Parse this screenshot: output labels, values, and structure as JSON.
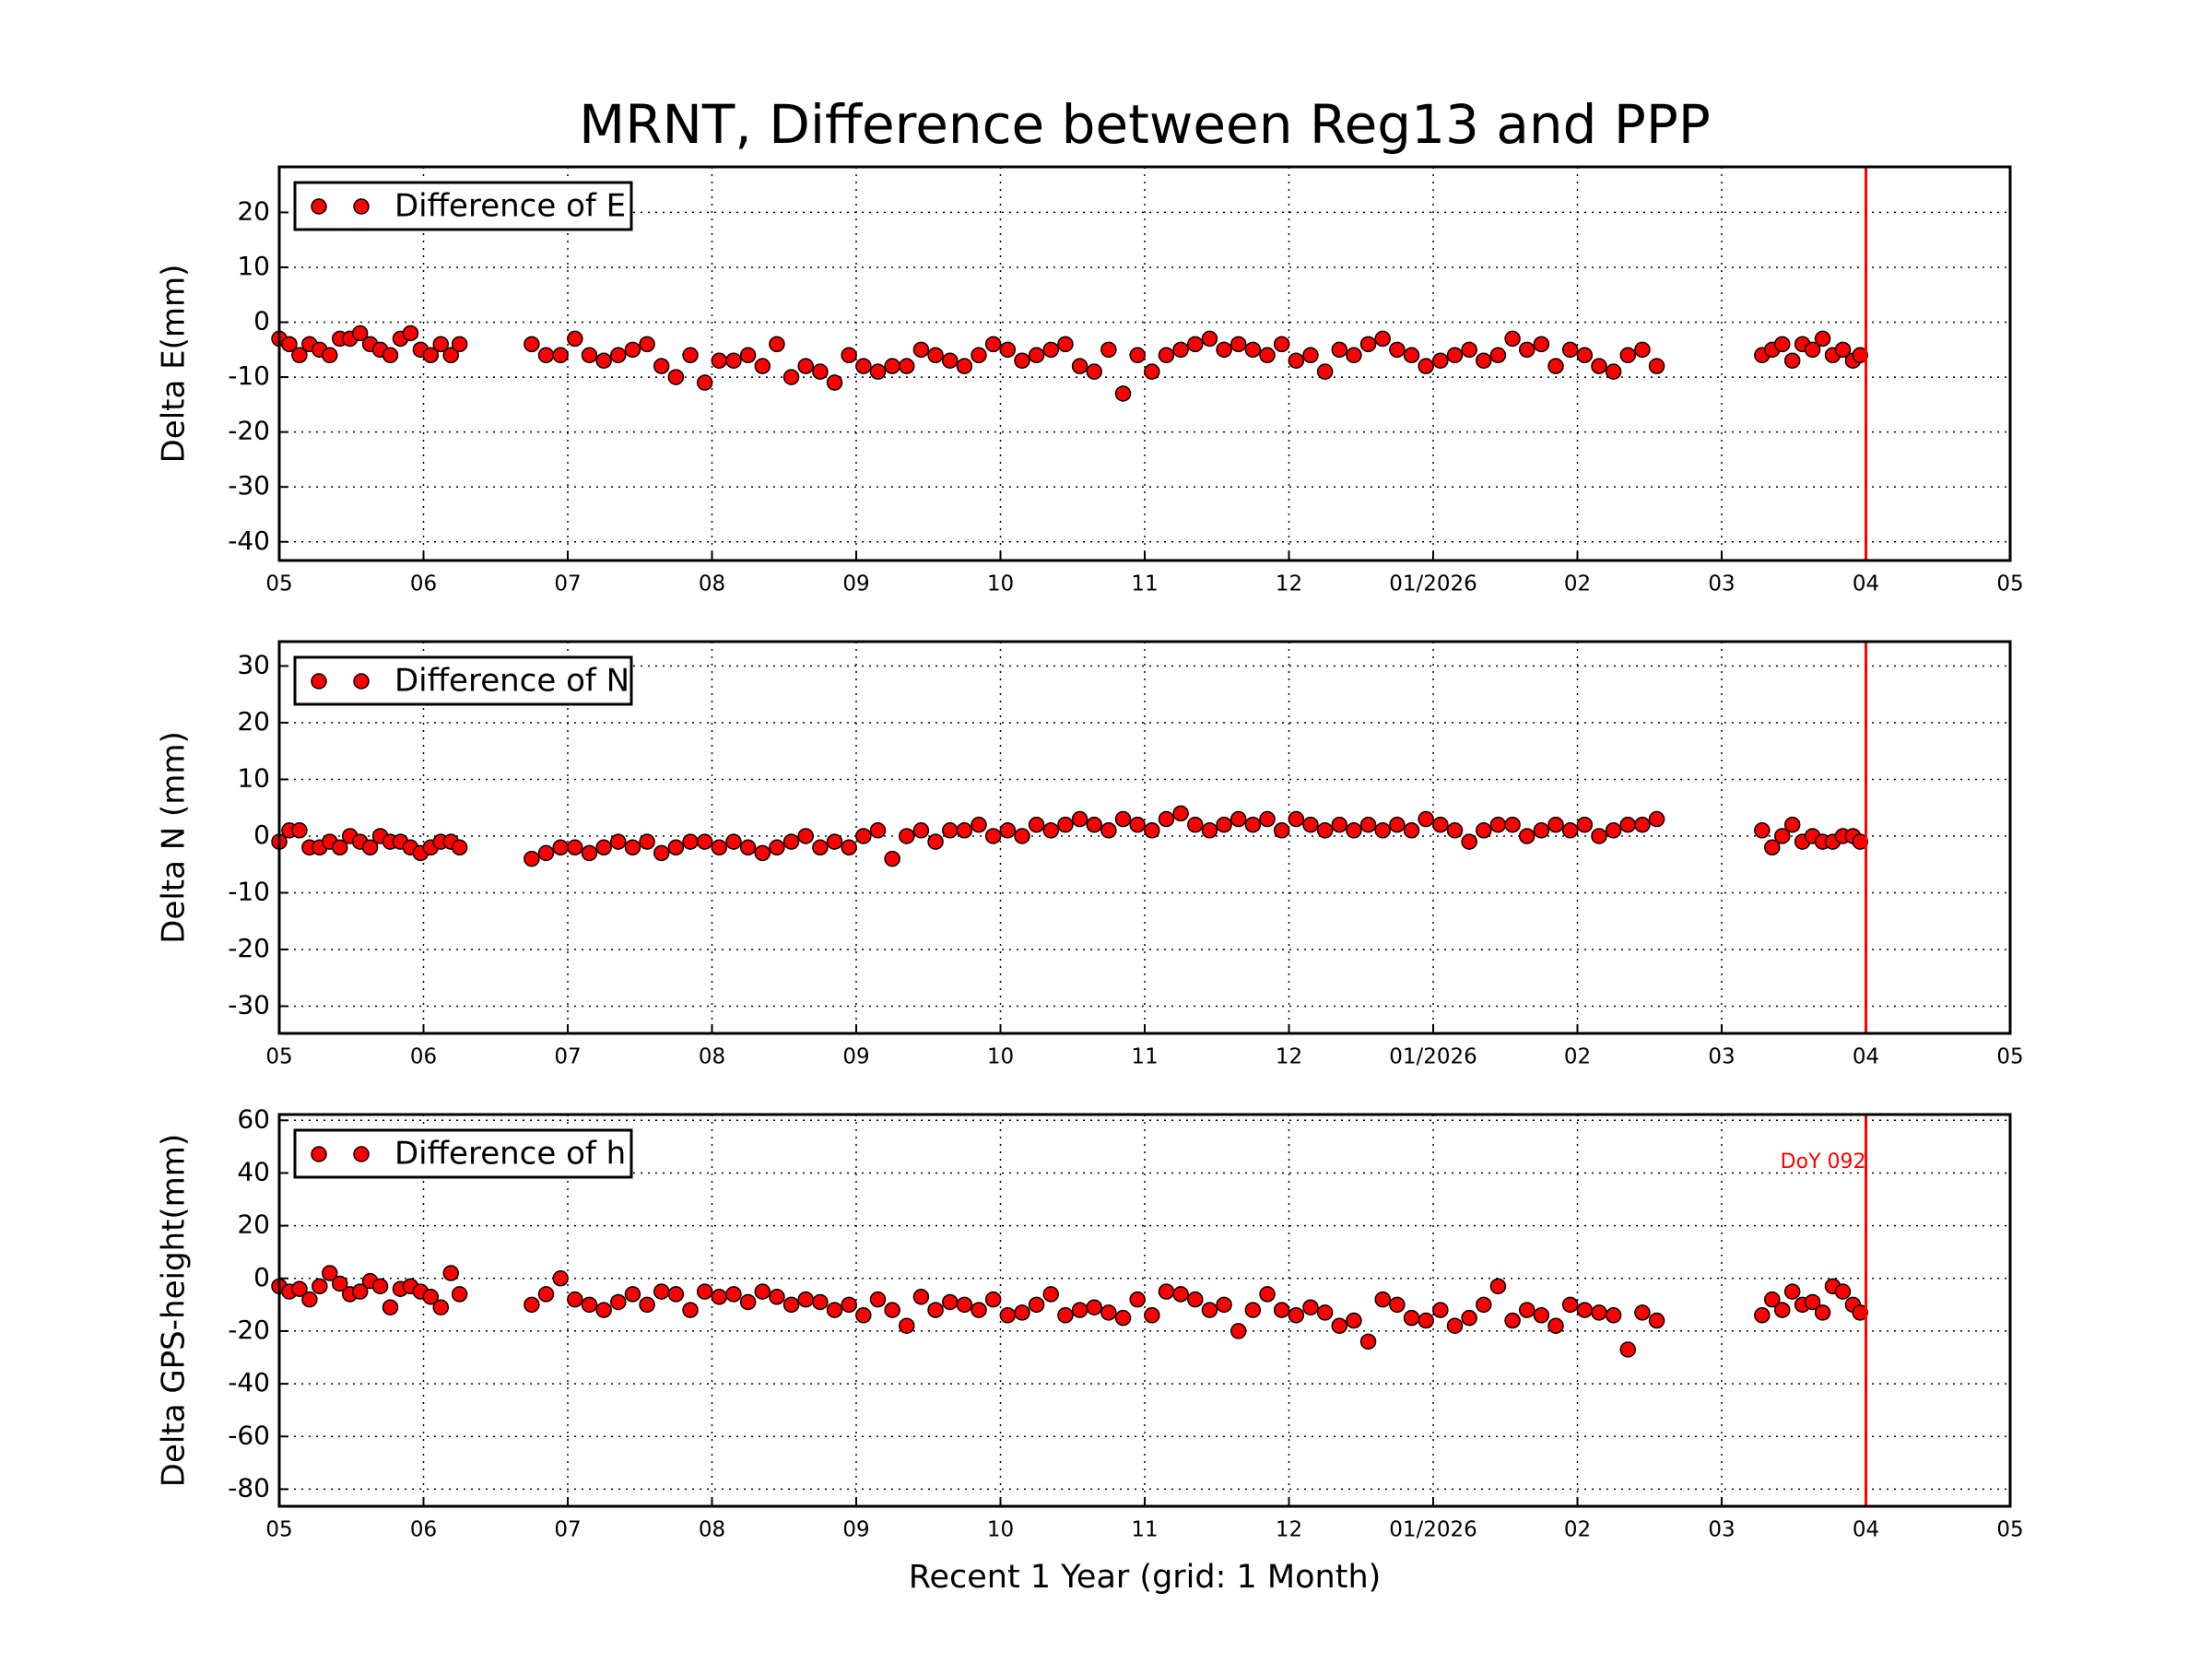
{
  "chart_data": [
    {
      "type": "scatter",
      "title": "MRNT, Difference between Reg13 and PPP",
      "ylabel": "Delta E(mm)",
      "x": [
        0,
        0.07,
        0.14,
        0.21,
        0.28,
        0.35,
        0.42,
        0.49,
        0.56,
        0.63,
        0.7,
        0.77,
        0.84,
        0.91,
        0.98,
        1.05,
        1.12,
        1.19,
        1.25,
        1.75,
        1.85,
        1.95,
        2.05,
        2.15,
        2.25,
        2.35,
        2.45,
        2.55,
        2.65,
        2.75,
        2.85,
        2.95,
        3.05,
        3.15,
        3.25,
        3.35,
        3.45,
        3.55,
        3.65,
        3.75,
        3.85,
        3.95,
        4.05,
        4.15,
        4.25,
        4.35,
        4.45,
        4.55,
        4.65,
        4.75,
        4.85,
        4.95,
        5.05,
        5.15,
        5.25,
        5.35,
        5.45,
        5.55,
        5.65,
        5.75,
        5.85,
        5.95,
        6.05,
        6.15,
        6.25,
        6.35,
        6.45,
        6.55,
        6.65,
        6.75,
        6.85,
        6.95,
        7.05,
        7.15,
        7.25,
        7.35,
        7.45,
        7.55,
        7.65,
        7.75,
        7.85,
        7.95,
        8.05,
        8.15,
        8.25,
        8.35,
        8.45,
        8.55,
        8.65,
        8.75,
        8.85,
        8.95,
        9.05,
        9.15,
        9.25,
        9.35,
        9.45,
        9.55,
        10.28,
        10.35,
        10.42,
        10.49,
        10.56,
        10.63,
        10.7,
        10.77,
        10.84,
        10.91,
        10.96
      ],
      "series": [
        {
          "name": "Difference of E",
          "color": "#ff0000",
          "values": [
            -3,
            -4,
            -6,
            -4,
            -5,
            -6,
            -3,
            -3,
            -2,
            -4,
            -5,
            -6,
            -3,
            -2,
            -5,
            -6,
            -4,
            -6,
            -4,
            -4,
            -6,
            -6,
            -3,
            -6,
            -7,
            -6,
            -5,
            -4,
            -8,
            -10,
            -6,
            -11,
            -7,
            -7,
            -6,
            -8,
            -4,
            -10,
            -8,
            -9,
            -11,
            -6,
            -8,
            -9,
            -8,
            -8,
            -5,
            -6,
            -7,
            -8,
            -6,
            -4,
            -5,
            -7,
            -6,
            -5,
            -4,
            -8,
            -9,
            -5,
            -13,
            -6,
            -9,
            -6,
            -5,
            -4,
            -3,
            -5,
            -4,
            -5,
            -6,
            -4,
            -7,
            -6,
            -9,
            -5,
            -6,
            -4,
            -3,
            -5,
            -6,
            -8,
            -7,
            -6,
            -5,
            -7,
            -6,
            -3,
            -5,
            -4,
            -8,
            -5,
            -6,
            -8,
            -9,
            -6,
            -5,
            -8,
            -6,
            -5,
            -4,
            -7,
            -4,
            -5,
            -3,
            -6,
            -5,
            -7,
            -6
          ]
        }
      ],
      "xlim": [
        0,
        12
      ],
      "xticks": [
        {
          "value": 0,
          "label": "05"
        },
        {
          "value": 1,
          "label": "06"
        },
        {
          "value": 2,
          "label": "07"
        },
        {
          "value": 3,
          "label": "08"
        },
        {
          "value": 4,
          "label": "09"
        },
        {
          "value": 5,
          "label": "10"
        },
        {
          "value": 6,
          "label": "11"
        },
        {
          "value": 7,
          "label": "12"
        },
        {
          "value": 8,
          "label": "01/2026"
        },
        {
          "value": 9,
          "label": "02"
        },
        {
          "value": 10,
          "label": "03"
        },
        {
          "value": 11,
          "label": "04"
        },
        {
          "value": 12,
          "label": "05"
        }
      ],
      "ylim": [
        -43.4,
        28.3
      ],
      "yticks": [
        -40,
        -30,
        -20,
        -10,
        0,
        10,
        20
      ],
      "grid": true,
      "legend": "upper left",
      "vline": {
        "x": 11,
        "color": "#ff0000"
      }
    },
    {
      "type": "scatter",
      "ylabel": "Delta N (mm)",
      "x": [
        0,
        0.07,
        0.14,
        0.21,
        0.28,
        0.35,
        0.42,
        0.49,
        0.56,
        0.63,
        0.7,
        0.77,
        0.84,
        0.91,
        0.98,
        1.05,
        1.12,
        1.19,
        1.25,
        1.75,
        1.85,
        1.95,
        2.05,
        2.15,
        2.25,
        2.35,
        2.45,
        2.55,
        2.65,
        2.75,
        2.85,
        2.95,
        3.05,
        3.15,
        3.25,
        3.35,
        3.45,
        3.55,
        3.65,
        3.75,
        3.85,
        3.95,
        4.05,
        4.15,
        4.25,
        4.35,
        4.45,
        4.55,
        4.65,
        4.75,
        4.85,
        4.95,
        5.05,
        5.15,
        5.25,
        5.35,
        5.45,
        5.55,
        5.65,
        5.75,
        5.85,
        5.95,
        6.05,
        6.15,
        6.25,
        6.35,
        6.45,
        6.55,
        6.65,
        6.75,
        6.85,
        6.95,
        7.05,
        7.15,
        7.25,
        7.35,
        7.45,
        7.55,
        7.65,
        7.75,
        7.85,
        7.95,
        8.05,
        8.15,
        8.25,
        8.35,
        8.45,
        8.55,
        8.65,
        8.75,
        8.85,
        8.95,
        9.05,
        9.15,
        9.25,
        9.35,
        9.45,
        9.55,
        10.28,
        10.35,
        10.42,
        10.49,
        10.56,
        10.63,
        10.7,
        10.77,
        10.84,
        10.91,
        10.96
      ],
      "series": [
        {
          "name": "Difference of N",
          "color": "#ff0000",
          "values": [
            -1,
            1,
            1,
            -2,
            -2,
            -1,
            -2,
            0,
            -1,
            -2,
            0,
            -1,
            -1,
            -2,
            -3,
            -2,
            -1,
            -1,
            -2,
            -4,
            -3,
            -2,
            -2,
            -3,
            -2,
            -1,
            -2,
            -1,
            -3,
            -2,
            -1,
            -1,
            -2,
            -1,
            -2,
            -3,
            -2,
            -1,
            0,
            -2,
            -1,
            -2,
            0,
            1,
            -4,
            0,
            1,
            -1,
            1,
            1,
            2,
            0,
            1,
            0,
            2,
            1,
            2,
            3,
            2,
            1,
            3,
            2,
            1,
            3,
            4,
            2,
            1,
            2,
            3,
            2,
            3,
            1,
            3,
            2,
            1,
            2,
            1,
            2,
            1,
            2,
            1,
            3,
            2,
            1,
            -1,
            1,
            2,
            2,
            0,
            1,
            2,
            1,
            2,
            0,
            1,
            2,
            2,
            3,
            1,
            -2,
            0,
            2,
            -1,
            0,
            -1,
            -1,
            0,
            0,
            -1
          ]
        }
      ],
      "xlim": [
        0,
        12
      ],
      "xticks": [
        {
          "value": 0,
          "label": "05"
        },
        {
          "value": 1,
          "label": "06"
        },
        {
          "value": 2,
          "label": "07"
        },
        {
          "value": 3,
          "label": "08"
        },
        {
          "value": 4,
          "label": "09"
        },
        {
          "value": 5,
          "label": "10"
        },
        {
          "value": 6,
          "label": "11"
        },
        {
          "value": 7,
          "label": "12"
        },
        {
          "value": 8,
          "label": "01/2026"
        },
        {
          "value": 9,
          "label": "02"
        },
        {
          "value": 10,
          "label": "03"
        },
        {
          "value": 11,
          "label": "04"
        },
        {
          "value": 12,
          "label": "05"
        }
      ],
      "ylim": [
        -34.8,
        34.3
      ],
      "yticks": [
        -30,
        -20,
        -10,
        0,
        10,
        20,
        30
      ],
      "grid": true,
      "legend": "upper left",
      "vline": {
        "x": 11,
        "color": "#ff0000"
      }
    },
    {
      "type": "scatter",
      "ylabel": "Delta GPS-height(mm)",
      "xlabel": "Recent 1 Year (grid: 1 Month)",
      "annotation": "DoY 092",
      "x": [
        0,
        0.07,
        0.14,
        0.21,
        0.28,
        0.35,
        0.42,
        0.49,
        0.56,
        0.63,
        0.7,
        0.77,
        0.84,
        0.91,
        0.98,
        1.05,
        1.12,
        1.19,
        1.25,
        1.75,
        1.85,
        1.95,
        2.05,
        2.15,
        2.25,
        2.35,
        2.45,
        2.55,
        2.65,
        2.75,
        2.85,
        2.95,
        3.05,
        3.15,
        3.25,
        3.35,
        3.45,
        3.55,
        3.65,
        3.75,
        3.85,
        3.95,
        4.05,
        4.15,
        4.25,
        4.35,
        4.45,
        4.55,
        4.65,
        4.75,
        4.85,
        4.95,
        5.05,
        5.15,
        5.25,
        5.35,
        5.45,
        5.55,
        5.65,
        5.75,
        5.85,
        5.95,
        6.05,
        6.15,
        6.25,
        6.35,
        6.45,
        6.55,
        6.65,
        6.75,
        6.85,
        6.95,
        7.05,
        7.15,
        7.25,
        7.35,
        7.45,
        7.55,
        7.65,
        7.75,
        7.85,
        7.95,
        8.05,
        8.15,
        8.25,
        8.35,
        8.45,
        8.55,
        8.65,
        8.75,
        8.85,
        8.95,
        9.05,
        9.15,
        9.25,
        9.35,
        9.45,
        9.55,
        10.28,
        10.35,
        10.42,
        10.49,
        10.56,
        10.63,
        10.7,
        10.77,
        10.84,
        10.91,
        10.96
      ],
      "series": [
        {
          "name": "Difference of h",
          "color": "#ff0000",
          "values": [
            -3,
            -5,
            -4,
            -8,
            -3,
            2,
            -2,
            -6,
            -5,
            -1,
            -3,
            -11,
            -4,
            -3,
            -5,
            -7,
            -11,
            2,
            -6,
            -10,
            -6,
            0,
            -8,
            -10,
            -12,
            -9,
            -6,
            -10,
            -5,
            -6,
            -12,
            -5,
            -7,
            -6,
            -9,
            -5,
            -7,
            -10,
            -8,
            -9,
            -12,
            -10,
            -14,
            -8,
            -12,
            -18,
            -7,
            -12,
            -9,
            -10,
            -12,
            -8,
            -14,
            -13,
            -10,
            -6,
            -14,
            -12,
            -11,
            -13,
            -15,
            -8,
            -14,
            -5,
            -6,
            -8,
            -12,
            -10,
            -20,
            -12,
            -6,
            -12,
            -14,
            -11,
            -13,
            -18,
            -16,
            -24,
            -8,
            -10,
            -15,
            -16,
            -12,
            -18,
            -15,
            -10,
            -3,
            -16,
            -12,
            -14,
            -18,
            -10,
            -12,
            -13,
            -14,
            -27,
            -13,
            -16,
            -14,
            -8,
            -12,
            -5,
            -10,
            -9,
            -13,
            -3,
            -5,
            -10,
            -13
          ]
        }
      ],
      "xlim": [
        0,
        12
      ],
      "xticks": [
        {
          "value": 0,
          "label": "05"
        },
        {
          "value": 1,
          "label": "06"
        },
        {
          "value": 2,
          "label": "07"
        },
        {
          "value": 3,
          "label": "08"
        },
        {
          "value": 4,
          "label": "09"
        },
        {
          "value": 5,
          "label": "10"
        },
        {
          "value": 6,
          "label": "11"
        },
        {
          "value": 7,
          "label": "12"
        },
        {
          "value": 8,
          "label": "01/2026"
        },
        {
          "value": 9,
          "label": "02"
        },
        {
          "value": 10,
          "label": "03"
        },
        {
          "value": 11,
          "label": "04"
        },
        {
          "value": 12,
          "label": "05"
        }
      ],
      "ylim": [
        -86.5,
        62.2
      ],
      "yticks": [
        -80,
        -60,
        -40,
        -20,
        0,
        20,
        40,
        60
      ],
      "grid": true,
      "legend": "upper left",
      "vline": {
        "x": 11,
        "color": "#ff0000"
      }
    }
  ]
}
